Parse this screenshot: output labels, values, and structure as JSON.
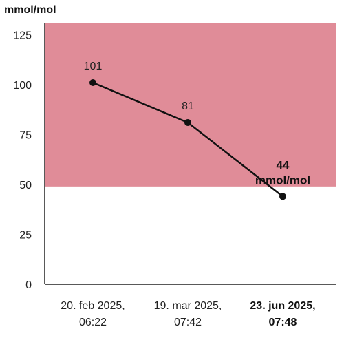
{
  "chart_data": {
    "type": "line",
    "ylabel": "mmol/mol",
    "ylim": [
      0,
      131
    ],
    "yticks": [
      0,
      25,
      50,
      75,
      100,
      125
    ],
    "grid": false,
    "target_band": {
      "from": 49,
      "to": 131,
      "color": "#e08c98"
    },
    "line_color": "#111111",
    "points": [
      {
        "x_line1": "20. feb 2025,",
        "x_line2": "06:22",
        "y": 101,
        "label": "101",
        "label2": "",
        "emphasis": false
      },
      {
        "x_line1": "19. mar 2025,",
        "x_line2": "07:42",
        "y": 81,
        "label": "81",
        "label2": "",
        "emphasis": false
      },
      {
        "x_line1": "23. jun 2025,",
        "x_line2": "07:48",
        "y": 44,
        "label": "44",
        "label2": "mmol/mol",
        "emphasis": true
      }
    ]
  }
}
